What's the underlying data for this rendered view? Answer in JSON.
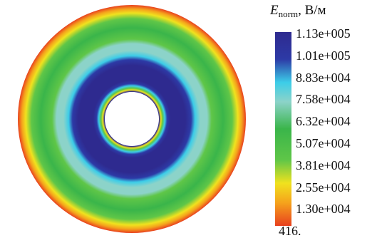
{
  "legend": {
    "quantity_symbol": "E",
    "quantity_subscript": "norm",
    "units_suffix": ", В/м",
    "tick_labels": [
      "1.13e+005",
      "1.01e+005",
      "8.83e+004",
      "7.58e+004",
      "6.32e+004",
      "5.07e+004",
      "3.81e+004",
      "2.55e+004",
      "1.30e+004",
      "416."
    ],
    "colormap": [
      "#e8401f",
      "#f5a31c",
      "#f0e21e",
      "#5fc648",
      "#3ab54a",
      "#8cd3c9",
      "#3ccde8",
      "#2d3aa6",
      "#2e2a8f"
    ]
  },
  "plot": {
    "background": "#ffffff",
    "bands": [
      {
        "color": "#e8401f"
      },
      {
        "color": "#f5a31c"
      },
      {
        "color": "#f0e21e"
      },
      {
        "color": "#5fc648"
      },
      {
        "color": "#3ab54a"
      },
      {
        "color": "#8cd3c9"
      },
      {
        "color": "#3ccde8"
      },
      {
        "color": "#2d3aa6"
      },
      {
        "color": "#2e2a8f"
      }
    ]
  }
}
